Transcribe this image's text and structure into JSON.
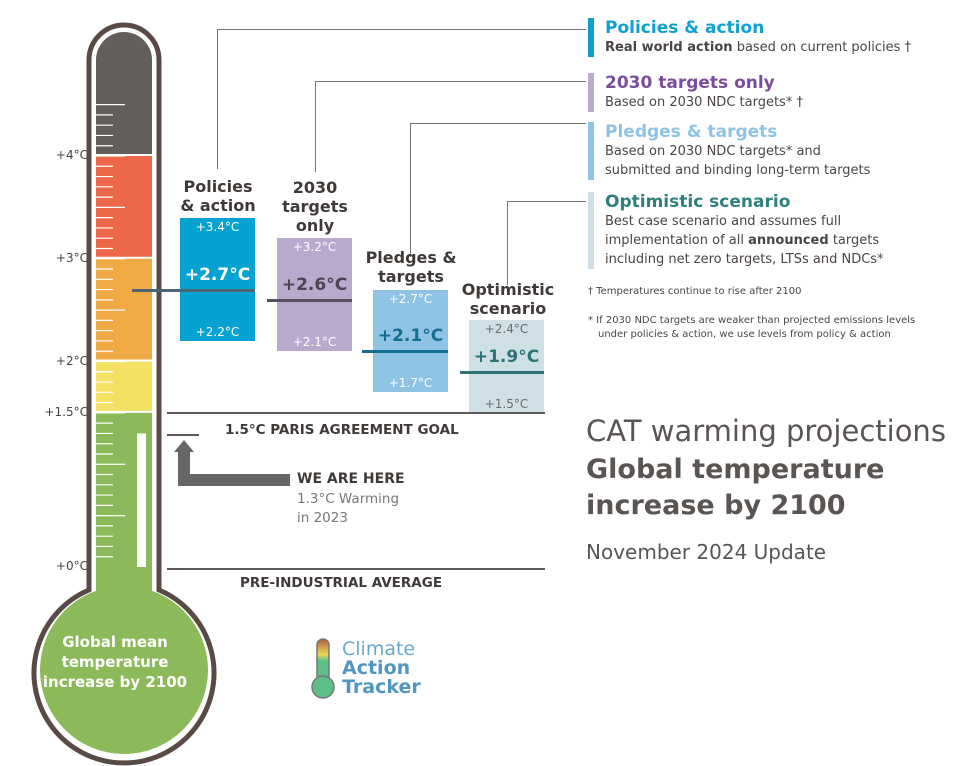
{
  "chart_data": {
    "type": "range",
    "axis_unit": "°C",
    "ylim": [
      0,
      4.6
    ],
    "tick_labels": [
      "+4°C",
      "+3°C",
      "+2°C",
      "+1.5°C",
      "+0°C"
    ],
    "thermometer_bands": [
      {
        "from": 4,
        "to": 4.6,
        "color": "#635e5c"
      },
      {
        "from": 3,
        "to": 4,
        "color": "#ec6648"
      },
      {
        "from": 2,
        "to": 3,
        "color": "#f0aa45"
      },
      {
        "from": 1.5,
        "to": 2,
        "color": "#f3e163"
      },
      {
        "from": 0,
        "to": 1.5,
        "color": "#8cba5a"
      }
    ],
    "bulb_label": "Global mean temperature increase by 2100",
    "scenarios": [
      {
        "name": "Policies & action",
        "title_lines": [
          "Policies",
          "& action"
        ],
        "high": 3.4,
        "median": 2.7,
        "low": 2.2,
        "high_label": "+3.4°C",
        "median_label": "+2.7°C",
        "low_label": "+2.2°C",
        "color": "#06a2d1",
        "line_color": "#4a6672",
        "text_color": "#ffffff",
        "median_text_color": "#ffffff"
      },
      {
        "name": "2030 targets only",
        "title_lines": [
          "2030",
          "targets",
          "only"
        ],
        "high": 3.2,
        "median": 2.6,
        "low": 2.1,
        "high_label": "+3.2°C",
        "median_label": "+2.6°C",
        "low_label": "+2.1°C",
        "color": "#b9a9cd",
        "line_color": "#56505e",
        "text_color": "#ffffff",
        "median_text_color": "#4a4550"
      },
      {
        "name": "Pledges & targets",
        "title_lines": [
          "Pledges &",
          "targets"
        ],
        "high": 2.7,
        "median": 2.1,
        "low": 1.7,
        "high_label": "+2.7°C",
        "median_label": "+2.1°C",
        "low_label": "+1.7°C",
        "color": "#8ec3e4",
        "line_color": "#136f8f",
        "text_color": "#ffffff",
        "median_text_color": "#136f8f"
      },
      {
        "name": "Optimistic scenario",
        "title_lines": [
          "Optimistic",
          "scenario"
        ],
        "high": 2.4,
        "median": 1.9,
        "low": 1.5,
        "high_label": "+2.4°C",
        "median_label": "+1.9°C",
        "low_label": "+1.5°C",
        "color": "#cfdfe6",
        "line_color": "#2e7476",
        "text_color": "#6b6b6b",
        "median_text_color": "#2e7476"
      }
    ],
    "reference_lines": [
      {
        "value": 1.5,
        "label": "1.5°C PARIS AGREEMENT GOAL"
      },
      {
        "value": 0,
        "label": "PRE-INDUSTRIAL AVERAGE"
      }
    ],
    "current": {
      "value": 1.3,
      "label": "WE ARE HERE",
      "detail_lines": [
        "1.3°C Warming",
        "in 2023"
      ]
    }
  },
  "legend": [
    {
      "title": "Policies & action",
      "color": "#0ea1cf",
      "bar": "#0ea1cf",
      "lines": [
        {
          "bold": "Real world action",
          "rest": " based on current policies †"
        }
      ]
    },
    {
      "title": "2030 targets only",
      "color": "#7b4d9b",
      "bar": "#b9a9cd",
      "lines": [
        {
          "bold": "",
          "rest": "Based on 2030 NDC targets* †"
        }
      ]
    },
    {
      "title": "Pledges & targets",
      "color": "#8ec3e4",
      "bar": "#8ec3e4",
      "lines": [
        {
          "bold": "",
          "rest": "Based on 2030 NDC targets* and"
        },
        {
          "bold": "",
          "rest": "submitted and binding long-term targets"
        }
      ]
    },
    {
      "title": "Optimistic scenario",
      "color": "#2f7f7c",
      "bar": "#cfdfe6",
      "lines": [
        {
          "bold": "",
          "rest": "Best case scenario and assumes full"
        },
        {
          "pre": "implementation of all ",
          "bold": "announced",
          "rest": " targets"
        },
        {
          "bold": "",
          "rest": "including net zero targets, LTSs and NDCs*"
        }
      ]
    }
  ],
  "notes": {
    "dagger": "† Temperatures continue to rise after 2100",
    "asterisk_1": "* If 2030 NDC targets are weaker than projected emissions levels",
    "asterisk_2": "under policies & action, we use levels from policy & action"
  },
  "title": {
    "line1": "CAT warming projections",
    "line2": "Global temperature",
    "line3": "increase by 2100",
    "update": "November 2024 Update"
  },
  "logo": {
    "line1": "Climate",
    "line2": "Action",
    "line3": "Tracker"
  }
}
